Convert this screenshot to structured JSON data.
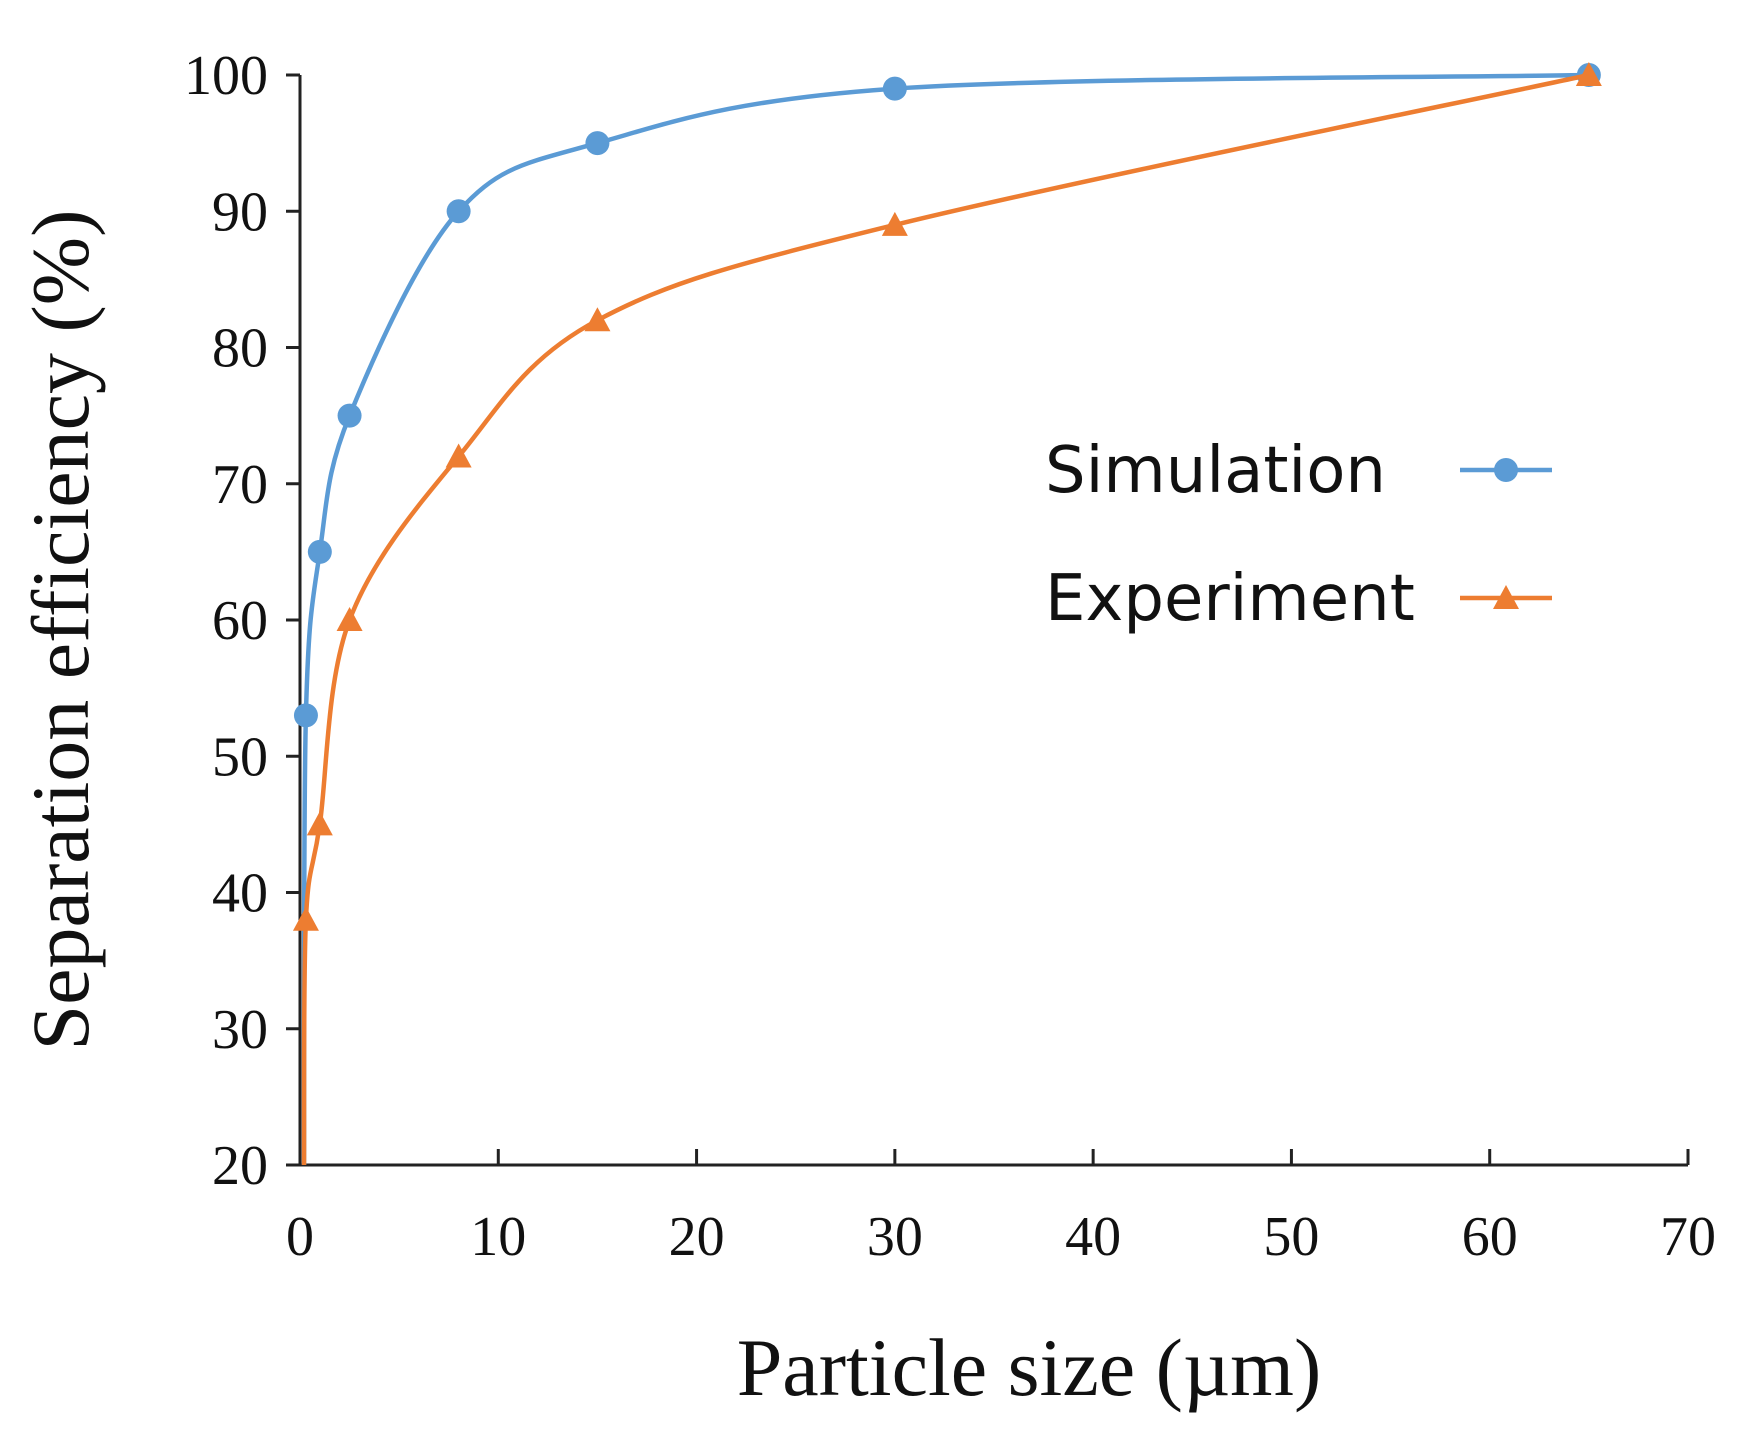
{
  "chart_data": {
    "type": "line",
    "title": "",
    "xlabel": "Particle size (µm)",
    "ylabel": "Separation efficiency (%)",
    "xlim": [
      0,
      70
    ],
    "ylim": [
      20,
      100
    ],
    "xticks": [
      0,
      10,
      20,
      30,
      40,
      50,
      60,
      70
    ],
    "yticks": [
      20,
      30,
      40,
      50,
      60,
      70,
      80,
      90,
      100
    ],
    "grid": false,
    "legend_position": "right-center",
    "series": [
      {
        "name": "Simulation",
        "color": "#5B9BD5",
        "marker": "circle",
        "x": [
          0.3,
          1,
          2.5,
          8,
          15,
          30,
          65
        ],
        "y": [
          53,
          65,
          75,
          90,
          95,
          99,
          100
        ],
        "line_start": [
          0.2,
          20
        ]
      },
      {
        "name": "Experiment",
        "color": "#ED7D31",
        "marker": "triangle",
        "x": [
          0.3,
          1,
          2.5,
          8,
          15,
          30,
          65
        ],
        "y": [
          38,
          45,
          60,
          72,
          82,
          89,
          100
        ],
        "line_start": [
          0.2,
          20
        ]
      }
    ]
  }
}
